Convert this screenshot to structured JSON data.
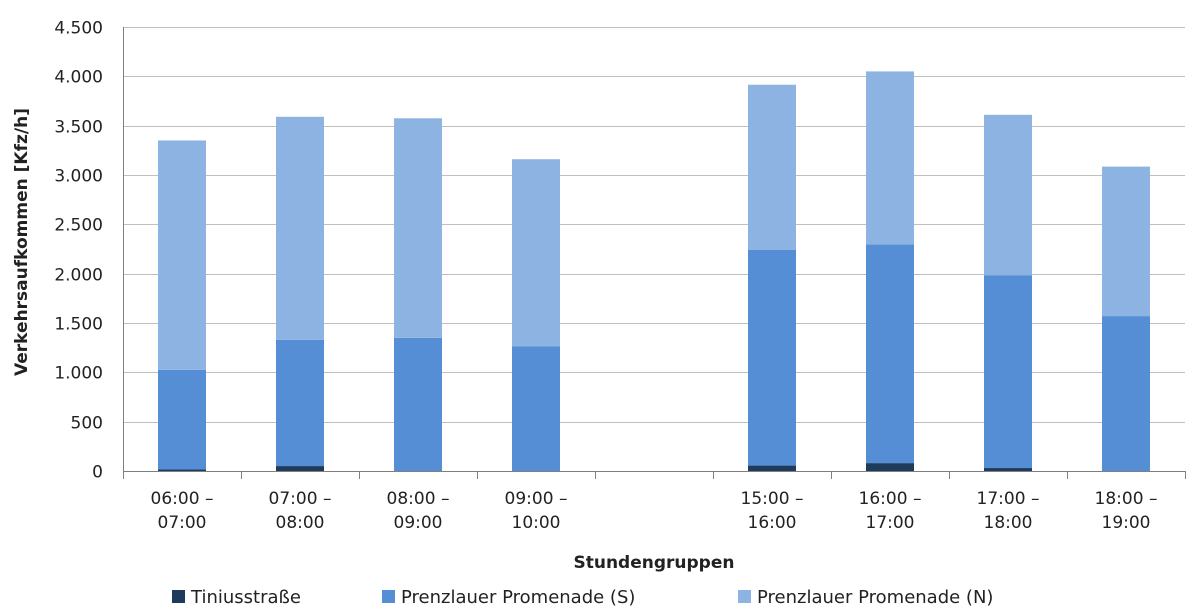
{
  "chart_data": {
    "type": "bar",
    "stacked": true,
    "title": "",
    "xlabel": "Stundengruppen",
    "ylabel": "Verkehrsaufkommen [Kfz/h]",
    "ylim": [
      0,
      4500
    ],
    "yticks": [
      0,
      500,
      1000,
      1500,
      2000,
      2500,
      3000,
      3500,
      4000,
      4500
    ],
    "ytick_labels": [
      "0",
      "500",
      "1.000",
      "1.500",
      "2.000",
      "2.500",
      "3.000",
      "3.500",
      "4.000",
      "4.500"
    ],
    "grid": true,
    "legend_position": "bottom",
    "categories": [
      [
        "06:00 –",
        "07:00"
      ],
      [
        "07:00 –",
        "08:00"
      ],
      [
        "08:00 –",
        "09:00"
      ],
      [
        "09:00 –",
        "10:00"
      ],
      [
        "",
        ""
      ],
      [
        "15:00 –",
        "16:00"
      ],
      [
        "16:00 –",
        "17:00"
      ],
      [
        "17:00 –",
        "18:00"
      ],
      [
        "18:00 –",
        "19:00"
      ]
    ],
    "series": [
      {
        "name": "Tiniusstraße",
        "color": "#1f3b5c",
        "values": [
          15,
          50,
          0,
          0,
          null,
          55,
          80,
          30,
          0
        ]
      },
      {
        "name": "Prenzlauer Promenade (S)",
        "color": "#558ed5",
        "values": [
          1010,
          1280,
          1350,
          1265,
          null,
          2185,
          2215,
          1955,
          1570
        ]
      },
      {
        "name": "Prenzlauer Promenade (N)",
        "color": "#8db3e2",
        "values": [
          2325,
          2260,
          2225,
          1895,
          null,
          1675,
          1755,
          1625,
          1515
        ]
      }
    ]
  }
}
